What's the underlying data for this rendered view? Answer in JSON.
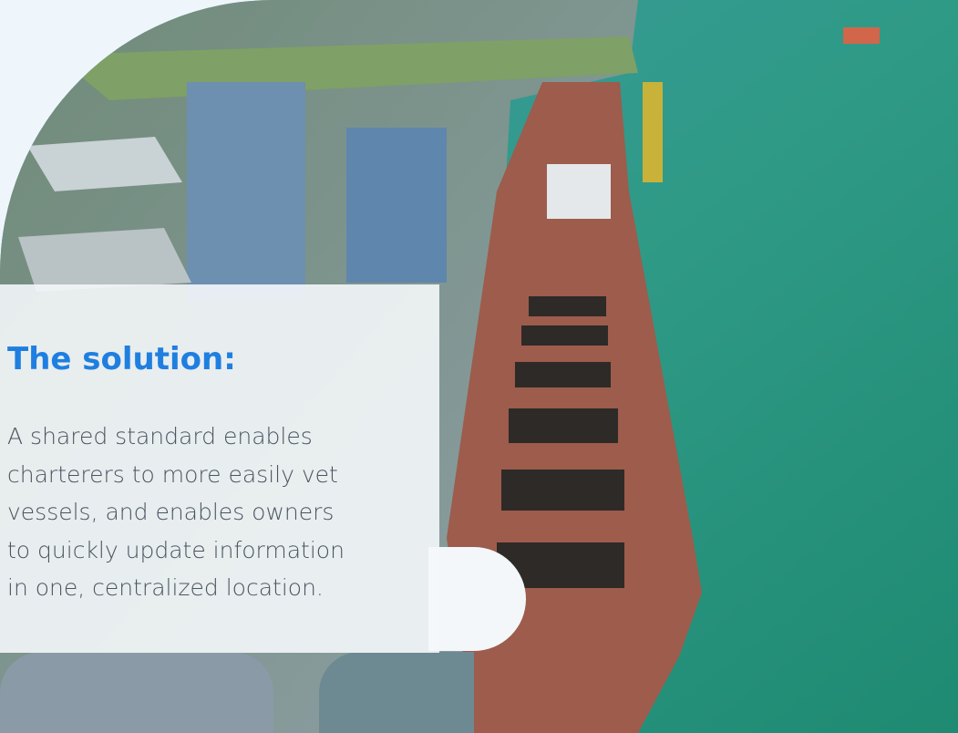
{
  "heading": "The solution:",
  "body_lines": [
    "A shared standard enables",
    "charterers to more easily vet",
    "vessels, and enables owners",
    "to quickly update information",
    "in one, centralized location."
  ]
}
